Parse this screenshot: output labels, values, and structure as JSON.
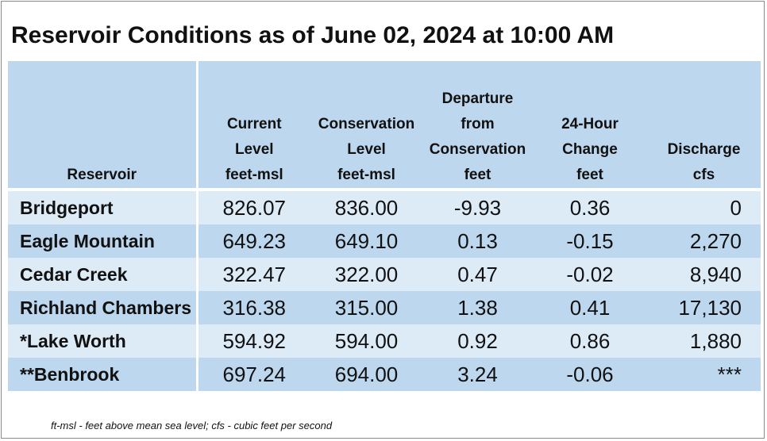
{
  "title": "Reservoir Conditions as of June 02, 2024 at 10:00 AM",
  "table": {
    "headers": [
      {
        "lines": [
          "Reservoir"
        ]
      },
      {
        "lines": [
          "Current",
          "Level",
          "feet-msl"
        ]
      },
      {
        "lines": [
          "Conservation",
          "Level",
          "feet-msl"
        ]
      },
      {
        "lines": [
          "Departure",
          "from",
          "Conservation",
          "feet"
        ]
      },
      {
        "lines": [
          "24-Hour",
          "Change",
          "feet"
        ]
      },
      {
        "lines": [
          "Discharge",
          "cfs"
        ]
      }
    ],
    "rows": [
      {
        "reservoir": "Bridgeport",
        "current": "826.07",
        "conservation": "836.00",
        "departure": "-9.93",
        "change": "0.36",
        "discharge": "0"
      },
      {
        "reservoir": "Eagle Mountain",
        "current": "649.23",
        "conservation": "649.10",
        "departure": "0.13",
        "change": "-0.15",
        "discharge": "2,270"
      },
      {
        "reservoir": "Cedar Creek",
        "current": "322.47",
        "conservation": "322.00",
        "departure": "0.47",
        "change": "-0.02",
        "discharge": "8,940"
      },
      {
        "reservoir": "Richland Chambers",
        "current": "316.38",
        "conservation": "315.00",
        "departure": "1.38",
        "change": "0.41",
        "discharge": "17,130"
      },
      {
        "reservoir": "*Lake Worth",
        "current": "594.92",
        "conservation": "594.00",
        "departure": "0.92",
        "change": "0.86",
        "discharge": "1,880"
      },
      {
        "reservoir": "**Benbrook",
        "current": "697.24",
        "conservation": "694.00",
        "departure": "3.24",
        "change": "-0.06",
        "discharge": "***"
      }
    ]
  },
  "footnote": "ft-msl - feet above mean sea level; cfs - cubic feet per second"
}
